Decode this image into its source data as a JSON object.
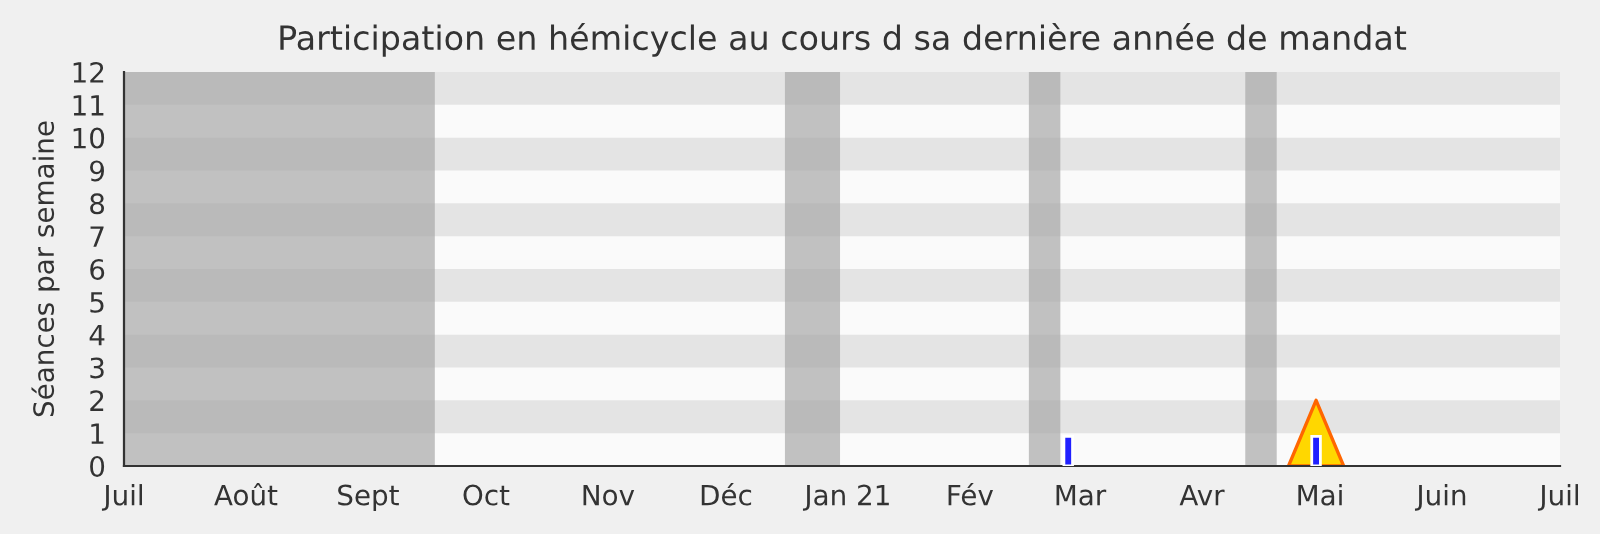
{
  "chart_data": {
    "type": "bar",
    "title": "Participation en hémicycle au cours d sa dernière année de mandat",
    "ylabel": "Séances par semaine",
    "xlim": [
      "2020-07-01",
      "2021-07-01"
    ],
    "xticks": [
      {
        "value": "2020-07-01",
        "label": "Juil"
      },
      {
        "value": "2020-08-01",
        "label": "Août"
      },
      {
        "value": "2020-09-01",
        "label": "Sept"
      },
      {
        "value": "2020-10-01",
        "label": "Oct"
      },
      {
        "value": "2020-11-01",
        "label": "Nov"
      },
      {
        "value": "2020-12-01",
        "label": "Déc"
      },
      {
        "value": "2021-01-01",
        "label": "Jan 21"
      },
      {
        "value": "2021-02-01",
        "label": "Fév"
      },
      {
        "value": "2021-03-01",
        "label": "Mar"
      },
      {
        "value": "2021-04-01",
        "label": "Avr"
      },
      {
        "value": "2021-05-01",
        "label": "Mai"
      },
      {
        "value": "2021-06-01",
        "label": "Juin"
      },
      {
        "value": "2021-07-01",
        "label": "Juil"
      }
    ],
    "ylim": [
      0,
      12
    ],
    "yticks": [
      0,
      1,
      2,
      3,
      4,
      5,
      6,
      7,
      8,
      9,
      10,
      11,
      12
    ],
    "bands": [
      {
        "axis": "x",
        "from": "2020-07-01",
        "to": "2020-09-18",
        "color": "#a8a8a8"
      },
      {
        "axis": "x",
        "from": "2020-12-16",
        "to": "2020-12-30",
        "color": "#a8a8a8"
      },
      {
        "axis": "x",
        "from": "2021-02-16",
        "to": "2021-02-24",
        "color": "#a8a8a8"
      },
      {
        "axis": "x",
        "from": "2021-04-12",
        "to": "2021-04-20",
        "color": "#a8a8a8"
      }
    ],
    "series": [
      {
        "type": "area",
        "color": "#ffd700",
        "x": [
          "2021-04-23",
          "2021-04-30",
          "2021-05-07"
        ],
        "values": [
          0,
          2,
          0
        ]
      },
      {
        "color": "#2020ff",
        "x": [
          "2021-02-26",
          "2021-04-30"
        ],
        "values": [
          0.9,
          0.9
        ]
      }
    ]
  }
}
